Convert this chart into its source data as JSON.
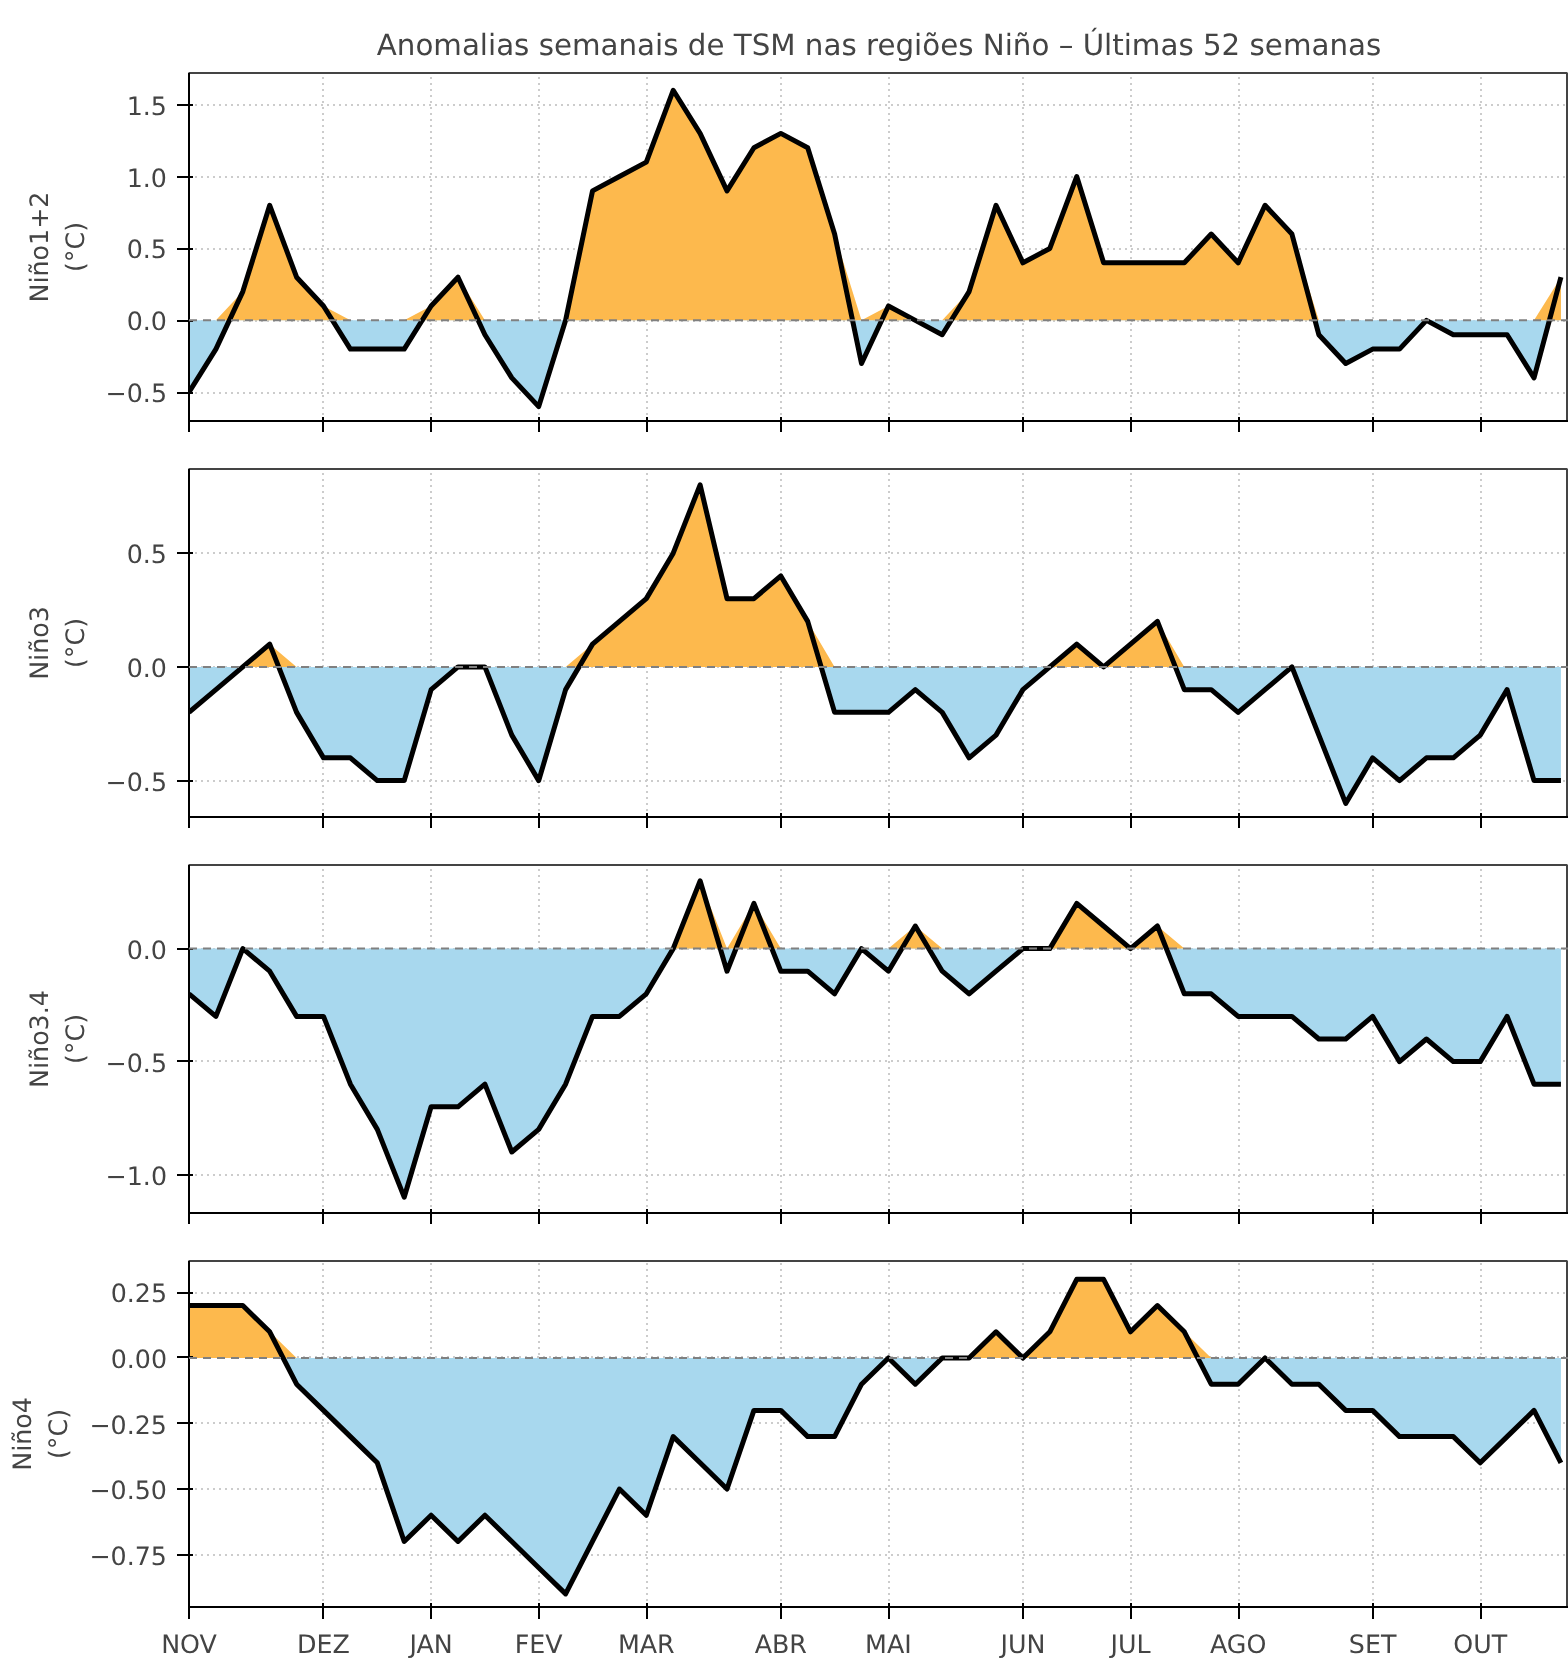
{
  "chart_data": [
    {
      "type": "area",
      "title": "Anomalias semanais de TSM nas regiões Niño – Últimas 52 semanas",
      "ylabel": "Niño1+2\n(°C)",
      "categories": [
        null,
        null,
        null,
        null,
        null,
        null,
        null,
        null,
        null,
        null,
        null,
        null,
        null,
        null,
        null,
        null,
        null,
        null,
        null,
        null,
        null,
        null,
        null,
        null,
        null,
        null,
        null,
        null,
        null,
        null,
        null,
        null,
        null,
        null,
        null,
        null,
        null,
        null,
        null,
        null,
        null,
        null,
        null,
        null,
        null,
        null,
        null,
        null,
        null,
        null,
        null,
        null
      ],
      "series": [
        {
          "color": "#000000",
          "values": [
            -0.5,
            -0.2,
            0.2,
            0.8,
            0.3,
            0.1,
            -0.2,
            -0.2,
            -0.2,
            0.1,
            0.3,
            -0.1,
            -0.4,
            -0.6,
            0.0,
            0.9,
            1.0,
            1.1,
            1.6,
            1.3,
            0.9,
            1.2,
            1.3,
            1.2,
            0.6,
            -0.3,
            0.1,
            0.0,
            -0.1,
            0.2,
            0.8,
            0.4,
            0.5,
            1.0,
            0.4,
            0.4,
            0.4,
            0.4,
            0.6,
            0.4,
            0.8,
            0.6,
            -0.1,
            -0.3,
            -0.2,
            -0.2,
            0.0,
            -0.1,
            -0.1,
            -0.1,
            -0.4,
            0.3
          ],
          "lower": [
            0,
            0,
            0,
            0,
            0,
            0,
            0,
            0,
            0,
            0,
            0,
            0,
            0,
            0,
            0,
            0,
            0,
            0,
            0,
            0,
            0,
            0,
            0,
            0,
            0,
            0,
            0,
            0,
            0,
            0,
            0,
            0,
            0,
            0,
            0,
            0,
            0,
            0,
            0,
            0,
            0,
            0,
            0,
            0,
            0,
            0,
            0,
            0,
            0,
            0,
            0,
            0
          ],
          "upper": [
            0,
            0,
            0.2,
            0.8,
            0.3,
            0.1,
            0,
            0,
            0,
            0.1,
            0.3,
            0,
            0,
            0,
            0.0,
            0.9,
            1.0,
            1.1,
            1.6,
            1.3,
            0.9,
            1.2,
            1.3,
            1.2,
            0.6,
            0,
            0.1,
            0.0,
            0,
            0.2,
            0.8,
            0.4,
            0.5,
            1.0,
            0.4,
            0.4,
            0.4,
            0.4,
            0.6,
            0.4,
            0.8,
            0.6,
            0,
            0,
            0,
            0,
            0.0,
            0,
            0,
            0,
            0,
            0.3
          ]
        }
      ],
      "colors": [
        "#fdb94d",
        "#a8d8ee"
      ],
      "ylim": [
        -0.7,
        1.72
      ],
      "yticks": [
        {
          "value": -0.5,
          "label": "−0.5"
        },
        {
          "value": 0,
          "label": "0.0"
        },
        {
          "value": 0.5,
          "label": "0.5"
        },
        {
          "value": 1.0,
          "label": "1.0"
        },
        {
          "value": 1.5,
          "label": "1.5"
        }
      ],
      "ref_lines": [
        {
          "axis": "y",
          "value": 0,
          "color": "#808080",
          "line_style": "dashed"
        }
      ],
      "grid": true,
      "tick_labels": "y"
    },
    {
      "type": "area",
      "ylabel": "Niño3\n(°C)",
      "categories": [
        null,
        null,
        null,
        null,
        null,
        null,
        null,
        null,
        null,
        null,
        null,
        null,
        null,
        null,
        null,
        null,
        null,
        null,
        null,
        null,
        null,
        null,
        null,
        null,
        null,
        null,
        null,
        null,
        null,
        null,
        null,
        null,
        null,
        null,
        null,
        null,
        null,
        null,
        null,
        null,
        null,
        null,
        null,
        null,
        null,
        null,
        null,
        null,
        null,
        null,
        null,
        null
      ],
      "series": [
        {
          "color": "#000000",
          "values": [
            -0.2,
            -0.1,
            0.0,
            0.1,
            -0.2,
            -0.4,
            -0.4,
            -0.5,
            -0.5,
            -0.1,
            0.0,
            0.0,
            -0.3,
            -0.5,
            -0.1,
            0.1,
            0.2,
            0.3,
            0.5,
            0.8,
            0.3,
            0.3,
            0.4,
            0.2,
            -0.2,
            -0.2,
            -0.2,
            -0.1,
            -0.2,
            -0.4,
            -0.3,
            -0.1,
            0.0,
            0.1,
            0.0,
            0.1,
            0.2,
            -0.1,
            -0.1,
            -0.2,
            -0.1,
            0.0,
            -0.3,
            -0.6,
            -0.4,
            -0.5,
            -0.4,
            -0.4,
            -0.3,
            -0.1,
            -0.5,
            -0.5
          ],
          "lower": [
            0,
            0,
            0,
            0,
            0,
            0,
            0,
            0,
            0,
            0,
            0,
            0,
            0,
            0,
            0,
            0,
            0,
            0,
            0,
            0,
            0,
            0,
            0,
            0,
            0,
            0,
            0,
            0,
            0,
            0,
            0,
            0,
            0,
            0,
            0,
            0,
            0,
            0,
            0,
            0,
            0,
            0,
            0,
            0,
            0,
            0,
            0,
            0,
            0,
            0,
            0,
            0
          ],
          "upper": [
            0,
            0,
            0.0,
            0.1,
            0,
            0,
            0,
            0,
            0,
            0,
            0.0,
            0.0,
            0,
            0,
            0,
            0.1,
            0.2,
            0.3,
            0.5,
            0.8,
            0.3,
            0.3,
            0.4,
            0.2,
            0,
            0,
            0,
            0,
            0,
            0,
            0,
            0,
            0.0,
            0.1,
            0.0,
            0.1,
            0.2,
            0,
            0,
            0,
            0,
            0.0,
            0,
            0,
            0,
            0,
            0,
            0,
            0,
            0,
            0,
            0
          ]
        }
      ],
      "colors": [
        "#fdb94d",
        "#a8d8ee"
      ],
      "ylim": [
        -0.66,
        0.87
      ],
      "yticks": [
        {
          "value": -0.5,
          "label": "−0.5"
        },
        {
          "value": 0,
          "label": "0.0"
        },
        {
          "value": 0.5,
          "label": "0.5"
        }
      ],
      "ref_lines": [
        {
          "axis": "y",
          "value": 0,
          "color": "#808080",
          "line_style": "dashed"
        }
      ],
      "grid": true,
      "tick_labels": "y"
    },
    {
      "type": "area",
      "ylabel": "Niño3.4\n(°C)",
      "categories": [
        null,
        null,
        null,
        null,
        null,
        null,
        null,
        null,
        null,
        null,
        null,
        null,
        null,
        null,
        null,
        null,
        null,
        null,
        null,
        null,
        null,
        null,
        null,
        null,
        null,
        null,
        null,
        null,
        null,
        null,
        null,
        null,
        null,
        null,
        null,
        null,
        null,
        null,
        null,
        null,
        null,
        null,
        null,
        null,
        null,
        null,
        null,
        null,
        null,
        null,
        null,
        null
      ],
      "series": [
        {
          "color": "#000000",
          "values": [
            -0.2,
            -0.3,
            0.0,
            -0.1,
            -0.3,
            -0.3,
            -0.6,
            -0.8,
            -1.1,
            -0.7,
            -0.7,
            -0.6,
            -0.9,
            -0.8,
            -0.6,
            -0.3,
            -0.3,
            -0.2,
            0.0,
            0.3,
            -0.1,
            0.2,
            -0.1,
            -0.1,
            -0.2,
            0.0,
            -0.1,
            0.1,
            -0.1,
            -0.2,
            -0.1,
            0.0,
            0.0,
            0.2,
            0.1,
            0.0,
            0.1,
            -0.2,
            -0.2,
            -0.3,
            -0.3,
            -0.3,
            -0.4,
            -0.4,
            -0.3,
            -0.5,
            -0.4,
            -0.5,
            -0.5,
            -0.3,
            -0.6,
            -0.6
          ],
          "lower": [
            0,
            0,
            0,
            0,
            0,
            0,
            0,
            0,
            0,
            0,
            0,
            0,
            0,
            0,
            0,
            0,
            0,
            0,
            0,
            0,
            0,
            0,
            0,
            0,
            0,
            0,
            0,
            0,
            0,
            0,
            0,
            0,
            0,
            0,
            0,
            0,
            0,
            0,
            0,
            0,
            0,
            0,
            0,
            0,
            0,
            0,
            0,
            0,
            0,
            0,
            0,
            0
          ],
          "upper": [
            0,
            0,
            0.0,
            0,
            0,
            0,
            0,
            0,
            0,
            0,
            0,
            0,
            0,
            0,
            0,
            0,
            0,
            0,
            0.0,
            0.3,
            0,
            0.2,
            0,
            0,
            0,
            0.0,
            0,
            0.1,
            0,
            0,
            0,
            0.0,
            0.0,
            0.2,
            0.1,
            0.0,
            0.1,
            0,
            0,
            0,
            0,
            0,
            0,
            0,
            0,
            0,
            0,
            0,
            0,
            0,
            0,
            0
          ]
        }
      ],
      "colors": [
        "#fdb94d",
        "#a8d8ee"
      ],
      "ylim": [
        -1.17,
        0.37
      ],
      "yticks": [
        {
          "value": -1.0,
          "label": "−1.0"
        },
        {
          "value": -0.5,
          "label": "−0.5"
        },
        {
          "value": 0,
          "label": "0.0"
        }
      ],
      "ref_lines": [
        {
          "axis": "y",
          "value": 0,
          "color": "#808080",
          "line_style": "dashed"
        }
      ],
      "grid": true,
      "tick_labels": "y"
    },
    {
      "type": "area",
      "ylabel": "Niño4\n(°C)",
      "categories": [
        "NOV",
        null,
        null,
        null,
        null,
        "DEZ",
        null,
        null,
        null,
        "JAN",
        null,
        null,
        null,
        "FEV",
        null,
        null,
        null,
        "MAR",
        null,
        null,
        null,
        null,
        "ABR",
        null,
        null,
        null,
        "MAI",
        null,
        null,
        null,
        null,
        "JUN",
        null,
        null,
        null,
        "JUL",
        null,
        null,
        null,
        "AGO",
        null,
        null,
        null,
        null,
        "SET",
        null,
        null,
        null,
        "OUT",
        null,
        null,
        null
      ],
      "series": [
        {
          "color": "#000000",
          "values": [
            0.2,
            0.2,
            0.2,
            0.1,
            -0.1,
            -0.2,
            -0.3,
            -0.4,
            -0.7,
            -0.6,
            -0.7,
            -0.6,
            -0.7,
            -0.8,
            -0.9,
            -0.7,
            -0.5,
            -0.6,
            -0.3,
            -0.4,
            -0.5,
            -0.2,
            -0.2,
            -0.3,
            -0.3,
            -0.1,
            0.0,
            -0.1,
            0.0,
            0.0,
            0.1,
            0.0,
            0.1,
            0.3,
            0.3,
            0.1,
            0.2,
            0.1,
            -0.1,
            -0.1,
            0.0,
            -0.1,
            -0.1,
            -0.2,
            -0.2,
            -0.3,
            -0.3,
            -0.3,
            -0.4,
            -0.3,
            -0.2,
            -0.4
          ],
          "lower": [
            0,
            0,
            0,
            0,
            0,
            0,
            0,
            0,
            0,
            0,
            0,
            0,
            0,
            0,
            0,
            0,
            0,
            0,
            0,
            0,
            0,
            0,
            0,
            0,
            0,
            0,
            0,
            0,
            0,
            0,
            0,
            0,
            0,
            0,
            0,
            0,
            0,
            0,
            0,
            0,
            0,
            0,
            0,
            0,
            0,
            0,
            0,
            0,
            0,
            0,
            0,
            0
          ],
          "upper": [
            0.2,
            0.2,
            0.2,
            0.1,
            0,
            0,
            0,
            0,
            0,
            0,
            0,
            0,
            0,
            0,
            0,
            0,
            0,
            0,
            0,
            0,
            0,
            0,
            0,
            0,
            0,
            0,
            0.0,
            0,
            0.0,
            0.0,
            0.1,
            0.0,
            0.1,
            0.3,
            0.3,
            0.1,
            0.2,
            0.1,
            0,
            0,
            0.0,
            0,
            0,
            0,
            0,
            0,
            0,
            0,
            0,
            0,
            0,
            0
          ]
        }
      ],
      "colors": [
        "#fdb94d",
        "#a8d8ee"
      ],
      "ylim": [
        -0.95,
        0.37
      ],
      "yticks": [
        {
          "value": -0.75,
          "label": "−0.75"
        },
        {
          "value": -0.5,
          "label": "−0.50"
        },
        {
          "value": -0.25,
          "label": "−0.25"
        },
        {
          "value": 0,
          "label": "0.00"
        },
        {
          "value": 0.25,
          "label": "0.25"
        }
      ],
      "ref_lines": [
        {
          "axis": "y",
          "value": 0,
          "color": "#808080",
          "line_style": "dashed"
        }
      ],
      "grid": true
    }
  ]
}
